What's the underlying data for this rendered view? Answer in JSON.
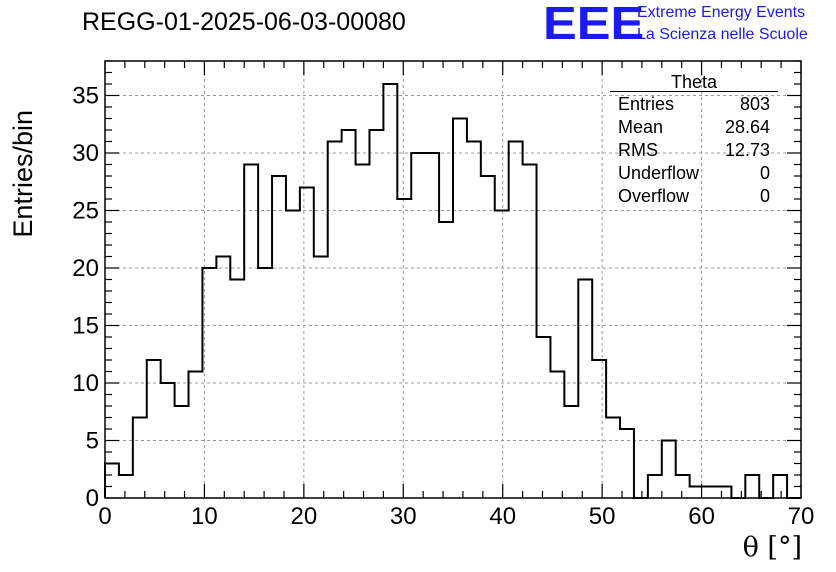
{
  "header": {
    "title": "REGG-01-2025-06-03-00080",
    "logo_text": "EEE",
    "logo_line1": "Extreme Energy Events",
    "logo_line2": "La Scienza nelle Scuole"
  },
  "stats_box": {
    "title": "Theta",
    "rows": [
      {
        "label": "Entries",
        "value": "803"
      },
      {
        "label": "Mean",
        "value": "28.64"
      },
      {
        "label": "RMS",
        "value": "12.73"
      },
      {
        "label": "Underflow",
        "value": "0"
      },
      {
        "label": "Overflow",
        "value": "0"
      }
    ]
  },
  "colors": {
    "logo": "#1b1bf0",
    "line": "#000000",
    "grid": "#9a9a9a"
  },
  "chart_data": {
    "type": "bar",
    "style": "step-histogram",
    "xlabel": "θ [°]",
    "ylabel": "Entries/bin",
    "xlim": [
      0,
      70
    ],
    "ylim": [
      0,
      38
    ],
    "grid": true,
    "bin_width": 1.4,
    "x_ticks": [
      0,
      10,
      20,
      30,
      40,
      50,
      60,
      70
    ],
    "y_ticks": [
      0,
      5,
      10,
      15,
      20,
      25,
      30,
      35
    ],
    "values": [
      3,
      2,
      7,
      12,
      10,
      8,
      11,
      20,
      21,
      19,
      29,
      20,
      28,
      25,
      27,
      21,
      31,
      32,
      29,
      32,
      36,
      26,
      30,
      30,
      24,
      33,
      31,
      28,
      25,
      31,
      29,
      14,
      11,
      8,
      19,
      12,
      7,
      6,
      0,
      2,
      5,
      2,
      1,
      1,
      1,
      0,
      2,
      0,
      2,
      0
    ]
  }
}
